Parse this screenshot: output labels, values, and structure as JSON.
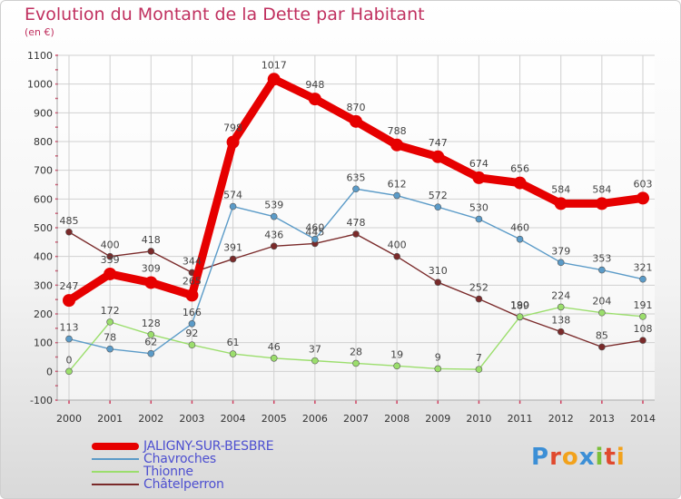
{
  "chart_data": {
    "type": "line",
    "title": "Evolution du Montant de la Dette par Habitant",
    "unit": "(en €)",
    "x": [
      "2000",
      "2001",
      "2002",
      "2003",
      "2004",
      "2005",
      "2006",
      "2007",
      "2008",
      "2009",
      "2010",
      "2011",
      "2012",
      "2013",
      "2014"
    ],
    "ylim": [
      -100,
      1100
    ],
    "yticks": [
      -100,
      0,
      100,
      200,
      300,
      400,
      500,
      600,
      700,
      800,
      900,
      1000,
      1100
    ],
    "grid": true,
    "legend": "bottom-left",
    "series": [
      {
        "name": "JALIGNY-SUR-BESBRE",
        "color": "#e60000",
        "emphasis": true,
        "values": [
          247,
          339,
          309,
          265,
          798,
          1017,
          948,
          870,
          788,
          747,
          674,
          656,
          584,
          584,
          603
        ],
        "labels": [
          "247",
          "339",
          "309",
          "265",
          "798",
          "1017",
          "948",
          "870",
          "788",
          "747",
          "674",
          "656",
          "584",
          "584",
          "603"
        ]
      },
      {
        "name": "Chavroches",
        "color": "#5b9bc8",
        "values": [
          113,
          78,
          62,
          166,
          574,
          539,
          460,
          635,
          612,
          572,
          530,
          460,
          379,
          353,
          321
        ],
        "labels": [
          "113",
          "78",
          "62",
          "166",
          "574",
          "539",
          "460",
          "635",
          "612",
          "572",
          "530",
          "460",
          "379",
          "353",
          "321"
        ]
      },
      {
        "name": "Thionne",
        "color": "#9bde6c",
        "values": [
          0,
          172,
          128,
          92,
          61,
          46,
          37,
          28,
          19,
          9,
          7,
          190,
          224,
          204,
          191
        ],
        "labels": [
          "0",
          "172",
          "128",
          "92",
          "61",
          "46",
          "37",
          "28",
          "19",
          "9",
          "7",
          "190",
          "224",
          "204",
          "191"
        ]
      },
      {
        "name": "Châtelperron",
        "color": "#7a2a2a",
        "values": [
          485,
          400,
          418,
          344,
          391,
          436,
          445,
          478,
          400,
          310,
          252,
          189,
          138,
          85,
          108
        ],
        "labels": [
          "485",
          "400",
          "418",
          "344",
          "391",
          "436",
          "445",
          "478",
          "400",
          "310",
          "252",
          "189",
          "138",
          "85",
          "108"
        ]
      }
    ]
  }
}
